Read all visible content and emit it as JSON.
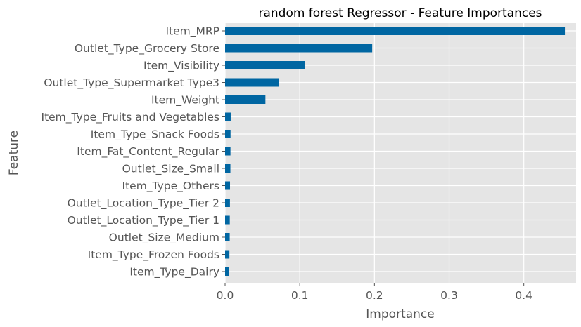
{
  "chart_data": {
    "type": "bar",
    "orientation": "horizontal",
    "title": "random forest Regressor - Feature Importances",
    "xlabel": "Importance",
    "ylabel": "Feature",
    "xlim": [
      0,
      0.47
    ],
    "xticks": [
      "0.0",
      "0.1",
      "0.2",
      "0.3",
      "0.4"
    ],
    "xtick_values": [
      0,
      0.1,
      0.2,
      0.3,
      0.4
    ],
    "grid": true,
    "categories": [
      "Item_MRP",
      "Outlet_Type_Grocery Store",
      "Item_Visibility",
      "Outlet_Type_Supermarket Type3",
      "Item_Weight",
      "Item_Type_Fruits and Vegetables",
      "Item_Type_Snack Foods",
      "Item_Fat_Content_Regular",
      "Outlet_Size_Small",
      "Item_Type_Others",
      "Outlet_Location_Type_Tier 2",
      "Outlet_Location_Type_Tier 1",
      "Outlet_Size_Medium",
      "Item_Type_Frozen Foods",
      "Item_Type_Dairy"
    ],
    "values": [
      0.455,
      0.197,
      0.107,
      0.072,
      0.054,
      0.0075,
      0.0073,
      0.0072,
      0.0071,
      0.0066,
      0.0065,
      0.0063,
      0.0062,
      0.0058,
      0.0052
    ],
    "colors": {
      "bar": "#0066a2",
      "plot_background": "#e5e5e5",
      "grid": "#ffffff",
      "text": "#555555"
    }
  }
}
